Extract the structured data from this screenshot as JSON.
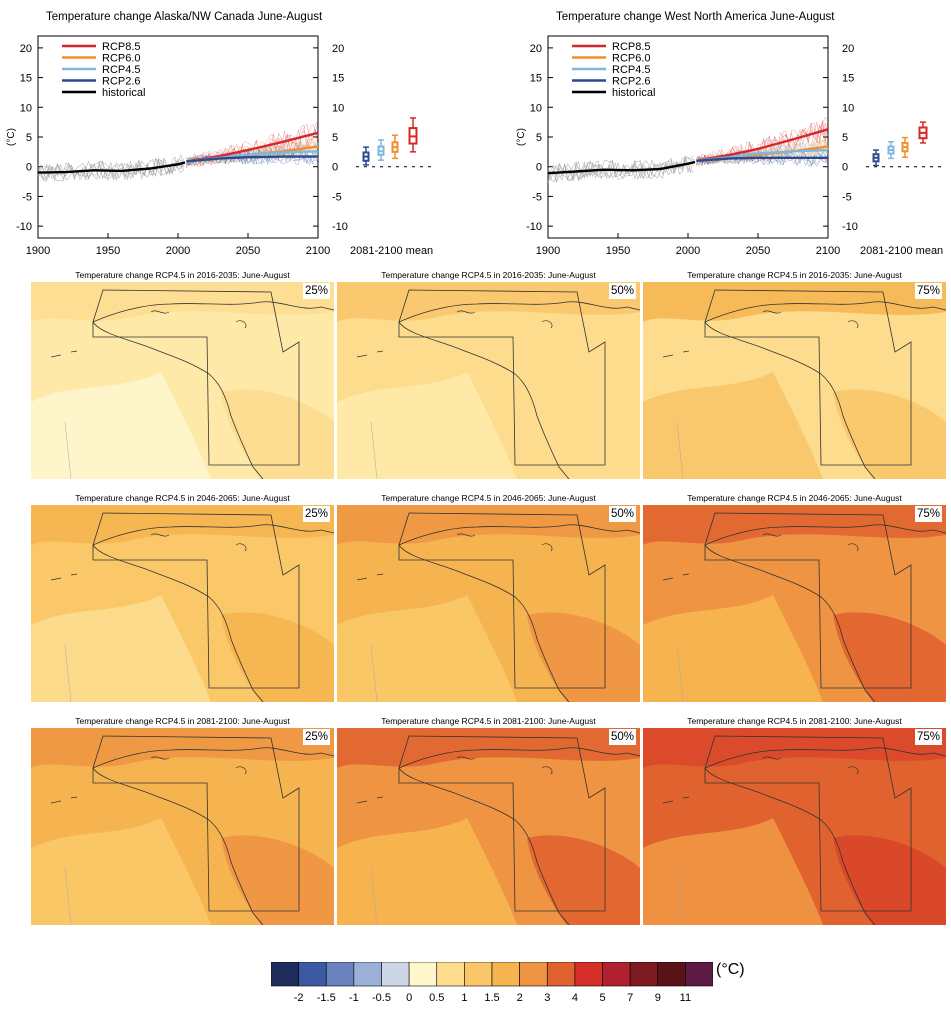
{
  "timeseries": [
    {
      "title": "Temperature change Alaska/NW Canada June-August",
      "ylabel": "(°C)",
      "mean_label": "2081-2100 mean",
      "chart_data": {
        "type": "line",
        "xlim": [
          1900,
          2100
        ],
        "ylim": [
          -12,
          22
        ],
        "yticks": [
          -10,
          -5,
          0,
          5,
          10,
          15,
          20
        ],
        "xticks": [
          1900,
          1950,
          2000,
          2050,
          2100
        ],
        "series": [
          {
            "name": "RCP8.5",
            "color": "#d62728",
            "x": [
              2006,
              2030,
              2050,
              2075,
              2100
            ],
            "values": [
              0.9,
              1.8,
              2.8,
              4.2,
              5.7
            ]
          },
          {
            "name": "RCP6.0",
            "color": "#f28e2b",
            "x": [
              2006,
              2030,
              2050,
              2075,
              2100
            ],
            "values": [
              0.9,
              1.4,
              2.0,
              2.6,
              3.4
            ]
          },
          {
            "name": "RCP4.5",
            "color": "#7fb7dd",
            "x": [
              2006,
              2030,
              2050,
              2075,
              2100
            ],
            "values": [
              0.9,
              1.5,
              2.0,
              2.4,
              2.6
            ]
          },
          {
            "name": "RCP2.6",
            "color": "#2c4a8c",
            "x": [
              2006,
              2030,
              2050,
              2075,
              2100
            ],
            "values": [
              0.9,
              1.4,
              1.6,
              1.7,
              1.7
            ]
          },
          {
            "name": "historical",
            "color": "#000000",
            "x": [
              1900,
              1920,
              1940,
              1960,
              1980,
              2000,
              2005
            ],
            "values": [
              -1.0,
              -0.9,
              -0.6,
              -0.7,
              -0.3,
              0.4,
              0.7
            ]
          }
        ],
        "boxes": [
          {
            "name": "RCP2.6",
            "color": "#2c4a8c",
            "median": 1.7,
            "q1": 1.0,
            "q3": 2.4,
            "min": 0.3,
            "max": 3.3
          },
          {
            "name": "RCP4.5",
            "color": "#7fb7dd",
            "median": 2.6,
            "q1": 2.0,
            "q3": 3.4,
            "min": 1.1,
            "max": 4.5
          },
          {
            "name": "RCP6.0",
            "color": "#f28e2b",
            "median": 3.3,
            "q1": 2.5,
            "q3": 4.1,
            "min": 1.4,
            "max": 5.3
          },
          {
            "name": "RCP8.5",
            "color": "#d62728",
            "median": 5.1,
            "q1": 3.9,
            "q3": 6.5,
            "min": 2.5,
            "max": 8.2
          }
        ]
      }
    },
    {
      "title": "Temperature change West North America June-August",
      "ylabel": "(°C)",
      "mean_label": "2081-2100 mean",
      "chart_data": {
        "type": "line",
        "xlim": [
          1900,
          2100
        ],
        "ylim": [
          -12,
          22
        ],
        "yticks": [
          -10,
          -5,
          0,
          5,
          10,
          15,
          20
        ],
        "xticks": [
          1900,
          1950,
          2000,
          2050,
          2100
        ],
        "series": [
          {
            "name": "RCP8.5",
            "color": "#d62728",
            "x": [
              2006,
              2030,
              2050,
              2075,
              2100
            ],
            "values": [
              1.0,
              2.0,
              3.0,
              4.6,
              6.3
            ]
          },
          {
            "name": "RCP6.0",
            "color": "#f28e2b",
            "x": [
              2006,
              2030,
              2050,
              2075,
              2100
            ],
            "values": [
              1.0,
              1.5,
              2.0,
              2.6,
              3.4
            ]
          },
          {
            "name": "RCP4.5",
            "color": "#7fb7dd",
            "x": [
              2006,
              2030,
              2050,
              2075,
              2100
            ],
            "values": [
              1.0,
              1.6,
              2.2,
              2.6,
              2.8
            ]
          },
          {
            "name": "RCP2.6",
            "color": "#2c4a8c",
            "x": [
              2006,
              2030,
              2050,
              2075,
              2100
            ],
            "values": [
              1.0,
              1.4,
              1.5,
              1.5,
              1.5
            ]
          },
          {
            "name": "historical",
            "color": "#000000",
            "x": [
              1900,
              1920,
              1940,
              1960,
              1980,
              2000,
              2005
            ],
            "values": [
              -1.1,
              -0.8,
              -0.5,
              -0.6,
              -0.4,
              0.5,
              0.8
            ]
          }
        ],
        "boxes": [
          {
            "name": "RCP2.6",
            "color": "#2c4a8c",
            "median": 1.5,
            "q1": 0.9,
            "q3": 2.1,
            "min": 0.2,
            "max": 2.8
          },
          {
            "name": "RCP4.5",
            "color": "#7fb7dd",
            "median": 2.8,
            "q1": 2.2,
            "q3": 3.4,
            "min": 1.4,
            "max": 4.2
          },
          {
            "name": "RCP6.0",
            "color": "#f28e2b",
            "median": 3.3,
            "q1": 2.6,
            "q3": 4.0,
            "min": 1.6,
            "max": 4.9
          },
          {
            "name": "RCP8.5",
            "color": "#d62728",
            "median": 5.7,
            "q1": 4.8,
            "q3": 6.6,
            "min": 4.0,
            "max": 7.5
          }
        ]
      }
    }
  ],
  "maps": {
    "rows": [
      {
        "title_prefix": "Temperature change RCP4.5 in 2016-2035: June-August",
        "panels": [
          {
            "pct": "25%",
            "base_color": "#fee9a8",
            "colors": [
              "#fff6cc",
              "#fddc8e",
              "#fddc8e"
            ]
          },
          {
            "pct": "50%",
            "base_color": "#fddc8e",
            "colors": [
              "#fee9a8",
              "#f9c66a",
              "#fddc8e"
            ]
          },
          {
            "pct": "75%",
            "base_color": "#fddc8e",
            "colors": [
              "#f9c66a",
              "#f5b44f",
              "#f9c66a"
            ]
          }
        ]
      },
      {
        "title_prefix": "Temperature change RCP4.5 in 2046-2065: June-August",
        "panels": [
          {
            "pct": "25%",
            "base_color": "#fac868",
            "colors": [
              "#fddc8e",
              "#f5b44f",
              "#f5b44f"
            ]
          },
          {
            "pct": "50%",
            "base_color": "#f5b44f",
            "colors": [
              "#fac868",
              "#ee9442",
              "#ee9442"
            ]
          },
          {
            "pct": "75%",
            "base_color": "#ee9442",
            "colors": [
              "#f5b44f",
              "#e0622f",
              "#e0622f"
            ]
          }
        ]
      },
      {
        "title_prefix": "Temperature change RCP4.5 in 2081-2100: June-August",
        "panels": [
          {
            "pct": "25%",
            "base_color": "#f5b44f",
            "colors": [
              "#fac868",
              "#ee9442",
              "#ee9442"
            ]
          },
          {
            "pct": "50%",
            "base_color": "#ee9442",
            "colors": [
              "#f5b44f",
              "#e0622f",
              "#e0622f"
            ]
          },
          {
            "pct": "75%",
            "base_color": "#e0622f",
            "colors": [
              "#ee9442",
              "#d9462a",
              "#d9462a"
            ]
          }
        ]
      }
    ]
  },
  "colorbar": {
    "unit": "(°C)",
    "labels": [
      "-2",
      "-1.5",
      "-1",
      "-0.5",
      "0",
      "0.5",
      "1",
      "1.5",
      "2",
      "3",
      "4",
      "5",
      "7",
      "9",
      "11"
    ],
    "colors": [
      "#1f2d5c",
      "#3b5aa3",
      "#6a82bd",
      "#9bb0d6",
      "#cdd6e6",
      "#fff6cc",
      "#fddc8e",
      "#f9c66a",
      "#f5b44f",
      "#ee9442",
      "#e0622f",
      "#d42f28",
      "#b0202e",
      "#7d1a22",
      "#5a1219",
      "#5c1a44"
    ]
  }
}
